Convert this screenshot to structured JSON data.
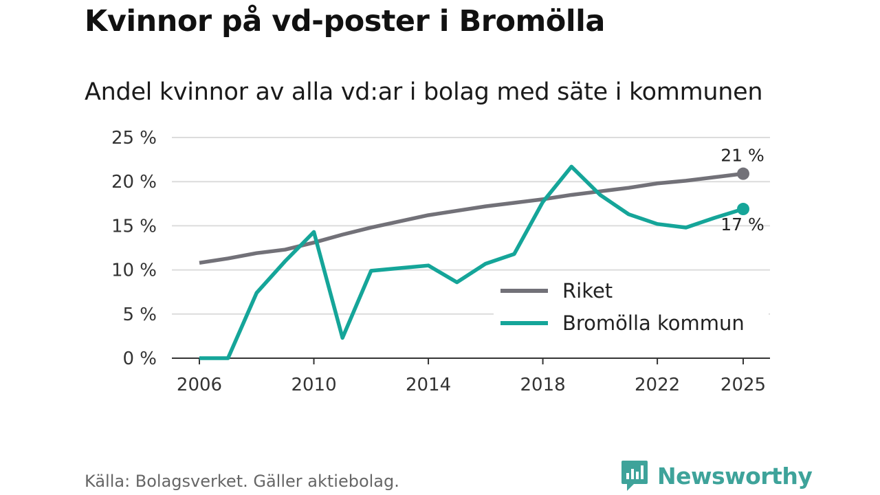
{
  "title": "Kvinnor på vd-poster i Bromölla",
  "subtitle": "Andel kvinnor av alla vd:ar i bolag med säte i kommunen",
  "source": "Källa: Bolagsverket. Gäller aktiebolag.",
  "brand": {
    "name": "Newsworthy",
    "color": "#3ea39a"
  },
  "chart_data": {
    "type": "line",
    "title": "Kvinnor på vd-poster i Bromölla",
    "subtitle": "Andel kvinnor av alla vd:ar i bolag med säte i kommunen",
    "xlabel": "",
    "ylabel": "",
    "x": [
      2006,
      2007,
      2008,
      2009,
      2010,
      2011,
      2012,
      2013,
      2014,
      2015,
      2016,
      2017,
      2018,
      2019,
      2020,
      2021,
      2022,
      2023,
      2024,
      2025
    ],
    "xlim": [
      2006,
      2025
    ],
    "ylim": [
      0,
      25
    ],
    "x_ticks": [
      2006,
      2010,
      2014,
      2018,
      2022,
      2025
    ],
    "x_tick_labels": [
      "2006",
      "2010",
      "2014",
      "2018",
      "2022",
      "2025"
    ],
    "y_ticks": [
      0,
      5,
      10,
      15,
      20,
      25
    ],
    "y_tick_labels": [
      "0 %",
      "5 %",
      "10 %",
      "15 %",
      "20 %",
      "25 %"
    ],
    "grid": true,
    "legend_position": "bottom-right",
    "series": [
      {
        "name": "Riket",
        "color": "#727178",
        "values": [
          10.8,
          11.3,
          11.9,
          12.3,
          13.1,
          14.0,
          14.8,
          15.5,
          16.2,
          16.7,
          17.2,
          17.6,
          18.0,
          18.5,
          18.9,
          19.3,
          19.8,
          20.1,
          20.5,
          20.9
        ],
        "end_label": "21 %"
      },
      {
        "name": "Bromölla kommun",
        "color": "#15a599",
        "values": [
          0.0,
          0.0,
          7.4,
          11.0,
          14.3,
          2.3,
          9.9,
          10.2,
          10.5,
          8.6,
          10.7,
          11.8,
          17.7,
          21.7,
          18.5,
          16.3,
          15.2,
          14.8,
          15.9,
          16.9
        ],
        "end_label": "17 %"
      }
    ]
  }
}
